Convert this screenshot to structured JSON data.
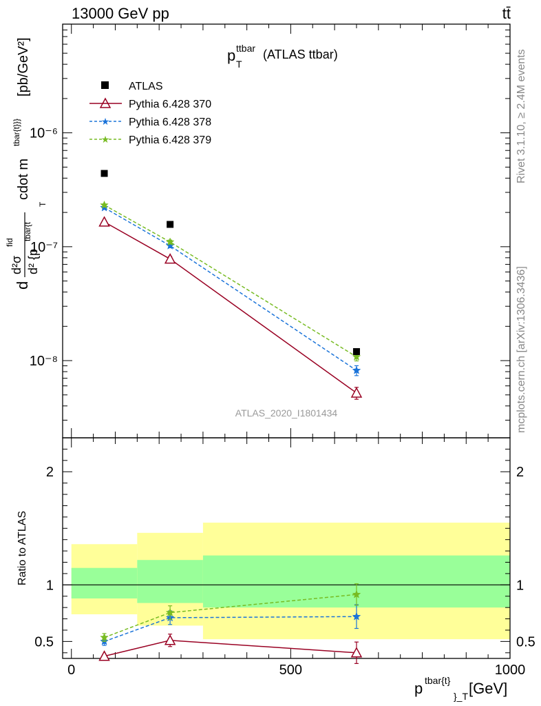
{
  "header": {
    "left": "13000 GeV pp",
    "right": "tt̄"
  },
  "title": {
    "main": "p",
    "sup": "ttbar",
    "sub": "T",
    "suffix": "(ATLAS ttbar)"
  },
  "side_labels": {
    "rivet": "Rivet 3.1.10, ≥ 2.4M events",
    "mcplots": "mcplots.cern.ch [arXiv:1306.3436]"
  },
  "watermark": "ATLAS_2020_I1801434",
  "y_label_top": "d d²σ^fid / d² {p_T^tbar{t}} cdot m^tbar{t}}} [pb/GeV²]",
  "y_label_top_parts": {
    "num_d": "d",
    "num_sigma": "d²σ",
    "num_sup": "fid",
    "den": "d² {p",
    "den_sup": "tbar{t",
    "den_sub": "T",
    "mid": "cdot m",
    "mid_sup": "tbar{t}}}",
    "unit": "[pb/GeV²]"
  },
  "y_label_bottom": "Ratio to ATLAS",
  "x_label": {
    "main": "p",
    "sup": "tbar{t}",
    "sub": "}_T",
    "unit": "[GeV]"
  },
  "chart_data": [
    {
      "type": "line",
      "panel": "main",
      "yscale": "log",
      "xlim": [
        -20,
        1000
      ],
      "ylim": [
        2.1e-09,
        9e-06
      ],
      "y_tick_labels": [
        "10⁻⁸",
        "10⁻⁷",
        "10⁻⁶"
      ],
      "y_tick_values": [
        1e-08,
        1e-07,
        1e-06
      ],
      "legend_position": "top-left",
      "data": {
        "name": "ATLAS",
        "x": [
          75,
          225,
          650
        ],
        "y": [
          4.4e-07,
          1.57e-07,
          1.2e-08
        ]
      },
      "series": [
        {
          "name": "Pythia 6.428 370",
          "color": "#990022",
          "style": "solid",
          "marker": "triangle",
          "x": [
            75,
            225,
            650
          ],
          "y": [
            1.65e-07,
            7.8e-08,
            5.2e-09
          ],
          "yerr": [
            0.03,
            0.05,
            0.12
          ]
        },
        {
          "name": "Pythia 6.428 378",
          "color": "#1a73d9",
          "style": "dashed",
          "marker": "star",
          "x": [
            75,
            225,
            650
          ],
          "y": [
            2.2e-07,
            1.02e-07,
            8.2e-09
          ],
          "yerr": [
            0.02,
            0.04,
            0.1
          ]
        },
        {
          "name": "Pythia 6.428 379",
          "color": "#77bb22",
          "style": "dashed",
          "marker": "star",
          "x": [
            75,
            225,
            650
          ],
          "y": [
            2.32e-07,
            1.1e-07,
            1.08e-08
          ],
          "yerr": [
            0.02,
            0.04,
            0.08
          ]
        }
      ]
    },
    {
      "type": "line",
      "panel": "ratio",
      "xlim": [
        -20,
        1000
      ],
      "ylim": [
        0.35,
        2.3
      ],
      "x_tick_labels": [
        "0",
        "500",
        "1000"
      ],
      "x_tick_values": [
        0,
        500,
        1000
      ],
      "y_tick_labels": [
        "0.5",
        "1",
        "2"
      ],
      "y_tick_values": [
        0.5,
        1,
        2
      ],
      "reference": 1,
      "bands": [
        {
          "x0": 0,
          "x1": 150,
          "green": [
            0.88,
            1.15
          ],
          "yellow": [
            0.74,
            1.36
          ]
        },
        {
          "x0": 150,
          "x1": 300,
          "green": [
            0.84,
            1.22
          ],
          "yellow": [
            0.64,
            1.46
          ]
        },
        {
          "x0": 300,
          "x1": 1000,
          "green": [
            0.8,
            1.26
          ],
          "yellow": [
            0.52,
            1.55
          ]
        }
      ],
      "series": [
        {
          "name": "Pythia 6.428 370",
          "color": "#990022",
          "style": "solid",
          "marker": "triangle",
          "x": [
            75,
            225,
            650
          ],
          "y": [
            0.37,
            0.51,
            0.4
          ],
          "yerr": [
            0,
            0.055,
            0.095
          ]
        },
        {
          "name": "Pythia 6.428 378",
          "color": "#1a73d9",
          "style": "dashed",
          "marker": "star",
          "x": [
            75,
            225,
            650
          ],
          "y": [
            0.5,
            0.71,
            0.72
          ],
          "yerr": [
            0.035,
            0.06,
            0.105
          ]
        },
        {
          "name": "Pythia 6.428 379",
          "color": "#77bb22",
          "style": "dashed",
          "marker": "star",
          "x": [
            75,
            225,
            650
          ],
          "y": [
            0.535,
            0.755,
            0.915
          ],
          "yerr": [
            0.035,
            0.06,
            0.095
          ]
        }
      ]
    }
  ]
}
